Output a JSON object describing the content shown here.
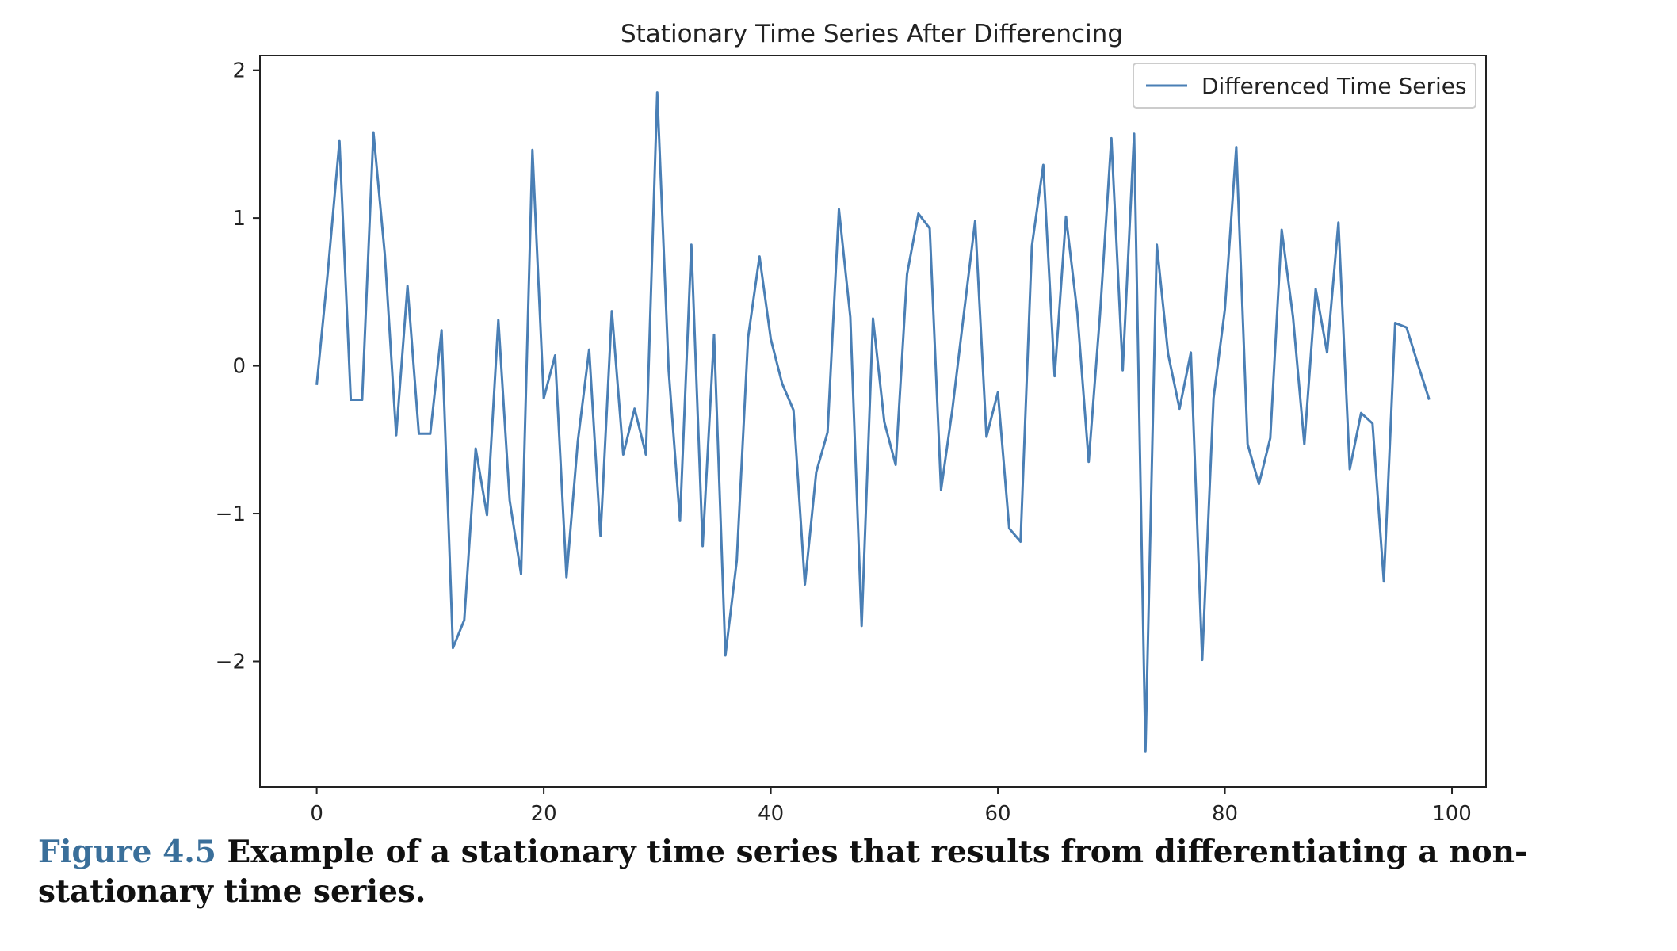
{
  "chart_data": {
    "type": "line",
    "title": "Stationary Time Series After Differencing",
    "xlabel": "",
    "ylabel": "",
    "xlim": [
      -5,
      103
    ],
    "ylim": [
      -2.85,
      2.1
    ],
    "x_ticks": [
      0,
      20,
      40,
      60,
      80,
      100
    ],
    "y_ticks": [
      2,
      1,
      0,
      -1,
      -2
    ],
    "y_tick_labels": [
      "2",
      "1",
      "0",
      "−1",
      "−2"
    ],
    "grid": false,
    "legend_position": "top-right",
    "series": [
      {
        "name": "Differenced Time Series",
        "color": "#4a7fb5",
        "x": [
          0,
          1,
          2,
          3,
          4,
          5,
          6,
          7,
          8,
          9,
          10,
          11,
          12,
          13,
          14,
          15,
          16,
          17,
          18,
          19,
          20,
          21,
          22,
          23,
          24,
          25,
          26,
          27,
          28,
          29,
          30,
          31,
          32,
          33,
          34,
          35,
          36,
          37,
          38,
          39,
          40,
          41,
          42,
          43,
          44,
          45,
          46,
          47,
          48,
          49,
          50,
          51,
          52,
          53,
          54,
          55,
          56,
          57,
          58,
          59,
          60,
          61,
          62,
          63,
          64,
          65,
          66,
          67,
          68,
          69,
          70,
          71,
          72,
          73,
          74,
          75,
          76,
          77,
          78,
          79,
          80,
          81,
          82,
          83,
          84,
          85,
          86,
          87,
          88,
          89,
          90,
          91,
          92,
          93,
          94,
          95,
          96,
          97,
          98
        ],
        "values": [
          -0.13,
          0.65,
          1.52,
          -0.23,
          -0.23,
          1.58,
          0.75,
          -0.47,
          0.54,
          -0.46,
          -0.46,
          0.24,
          -1.91,
          -1.72,
          -0.56,
          -1.01,
          0.31,
          -0.91,
          -1.41,
          1.46,
          -0.22,
          0.07,
          -1.43,
          -0.51,
          0.11,
          -1.15,
          0.37,
          -0.6,
          -0.29,
          -0.6,
          1.85,
          -0.03,
          -1.05,
          0.82,
          -1.22,
          0.21,
          -1.96,
          -1.32,
          0.19,
          0.74,
          0.18,
          -0.12,
          -0.3,
          -1.48,
          -0.72,
          -0.45,
          1.06,
          0.33,
          -1.76,
          0.32,
          -0.38,
          -0.67,
          0.62,
          1.03,
          0.93,
          -0.84,
          -0.29,
          0.35,
          0.98,
          -0.48,
          -0.18,
          -1.1,
          -1.19,
          0.81,
          1.36,
          -0.07,
          1.01,
          0.36,
          -0.65,
          0.35,
          1.54,
          -0.03,
          1.57,
          -2.61,
          0.82,
          0.08,
          -0.29,
          0.09,
          -1.99,
          -0.22,
          0.38,
          1.48,
          -0.53,
          -0.8,
          -0.49,
          0.92,
          0.33,
          -0.53,
          0.52,
          0.09,
          0.97,
          -0.7,
          -0.32,
          -0.39,
          -1.46,
          0.29,
          0.26,
          0.01,
          -0.23
        ]
      }
    ]
  },
  "caption": {
    "figure_number": "Figure 4.5",
    "text": " Example of a stationary time series that results from differentiating a non-stationary time series."
  }
}
